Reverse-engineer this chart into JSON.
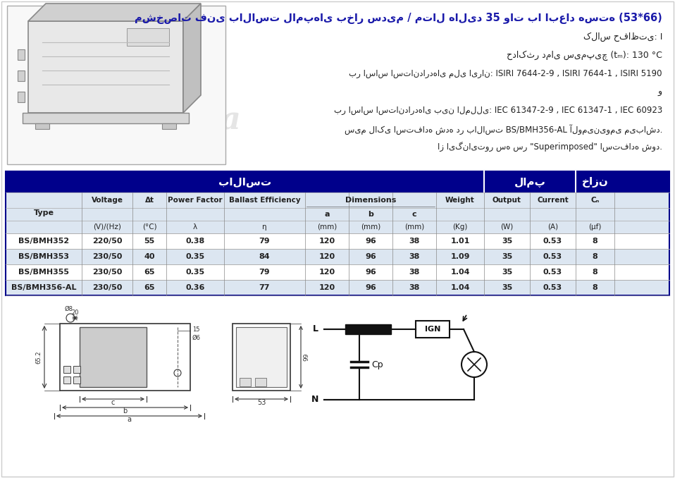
{
  "title": "مشخصات فنی بالاست لامپ‌های بخار سدیم / متال هالید 35 وات با ابعاد هسته (53*66)",
  "info_line1": "کلاس حفاظتی: I",
  "info_line2": "حداکثر دمای سیم‌پیچ (tₘ): 130 °C",
  "info_line3": "بر اساس استانداردهای ملی ایران: ISIRI 7644-2-9 , ISIRI 7644-1 , ISIRI 5190",
  "info_line4": "و",
  "info_line5": "بر اساس استانداردهای بین المللی: IEC 61347-2-9 , IEC 61347-1 , IEC 60923",
  "info_line6": "سیم لاکی استفاده شده در بالاست BS/BMH356-AL آلومینیومی می‌باشد.",
  "info_line7": "از ایگنایتور سه سر \"Superimposed\" استفاده شود.",
  "header_bg": "#00008B",
  "header_text_color": "#ffffff",
  "subheader_bg": "#dce6f1",
  "row_colors": [
    "#ffffff",
    "#dce6f1"
  ],
  "table_data": [
    [
      "BS/BMH352",
      "220/50",
      "55",
      "0.38",
      "79",
      "120",
      "96",
      "38",
      "1.01",
      "35",
      "0.53",
      "8"
    ],
    [
      "BS/BMH353",
      "230/50",
      "40",
      "0.35",
      "84",
      "120",
      "96",
      "38",
      "1.09",
      "35",
      "0.53",
      "8"
    ],
    [
      "BS/BMH355",
      "230/50",
      "65",
      "0.35",
      "79",
      "120",
      "96",
      "38",
      "1.04",
      "35",
      "0.53",
      "8"
    ],
    [
      "BS/BMH356-AL",
      "230/50",
      "65",
      "0.36",
      "77",
      "120",
      "96",
      "38",
      "1.04",
      "35",
      "0.53",
      "8"
    ]
  ],
  "bg_color": "#ffffff",
  "border_color": "#00008B",
  "text_dark": "#111111",
  "header_persian_ballast": "بالاست",
  "header_persian_lamp": "لامپ",
  "header_persian_khazan": "خازن"
}
